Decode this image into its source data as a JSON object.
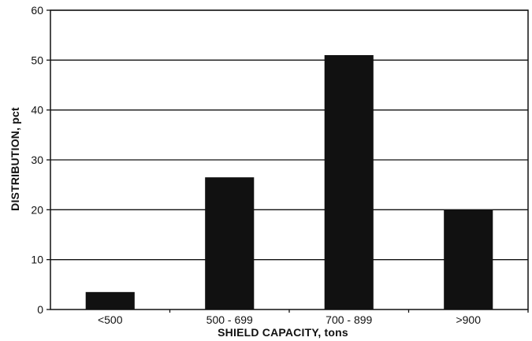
{
  "chart_data": {
    "type": "bar",
    "title": "",
    "xlabel": "SHIELD CAPACITY, tons",
    "ylabel": "DISTRIBUTION, pct",
    "categories": [
      "<500",
      "500 - 699",
      "700 - 899",
      ">900"
    ],
    "values": [
      3.5,
      26.5,
      51,
      20
    ],
    "ylim": [
      0,
      60
    ],
    "yticks": [
      0,
      10,
      20,
      30,
      40,
      50,
      60
    ],
    "grid": true,
    "legend": "none",
    "colors": {
      "bar": "#111111",
      "grid": "#111111",
      "axis": "#111111",
      "background": "#ffffff"
    }
  }
}
